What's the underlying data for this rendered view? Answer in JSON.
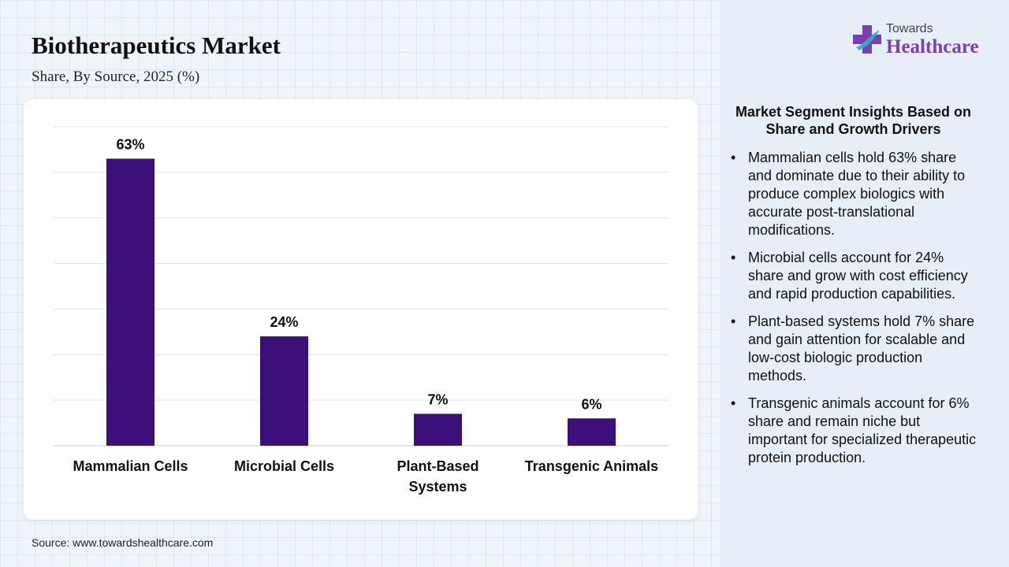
{
  "title": "Biotherapeutics Market",
  "subtitle": "Share, By Source, 2025 (%)",
  "source": "Source: www.towardshealthcare.com",
  "logo": {
    "small_text": "Towards",
    "big_text": "Healthcare"
  },
  "colors": {
    "bar": "#3d0f7a",
    "logo_accent": "#7a3fb5",
    "panel": "#e6eef8"
  },
  "chart_data": {
    "type": "bar",
    "categories": [
      "Mammalian Cells",
      "Microbial Cells",
      "Plant-Based Systems",
      "Transgenic Animals"
    ],
    "category_lines": [
      [
        "Mammalian Cells"
      ],
      [
        "Microbial Cells"
      ],
      [
        "Plant-Based",
        "Systems"
      ],
      [
        "Transgenic Animals"
      ]
    ],
    "values": [
      63,
      24,
      7,
      6
    ],
    "value_labels": [
      "63%",
      "24%",
      "7%",
      "6%"
    ],
    "ylim": [
      0,
      70
    ],
    "grid": true,
    "legend": "none"
  },
  "insights": {
    "title": "Market Segment Insights Based on Share and Growth Drivers",
    "bullet": "•",
    "items": [
      "Mammalian cells hold 63% share and dominate due to their ability to produce complex biologics with accurate post-translational modifications.",
      "Microbial cells account for 24% share and grow with cost efficiency and rapid production capabilities.",
      "Plant-based systems hold 7% share and gain attention for scalable and low-cost biologic production methods.",
      "Transgenic animals account for 6% share and remain niche but important for specialized therapeutic protein production."
    ]
  }
}
